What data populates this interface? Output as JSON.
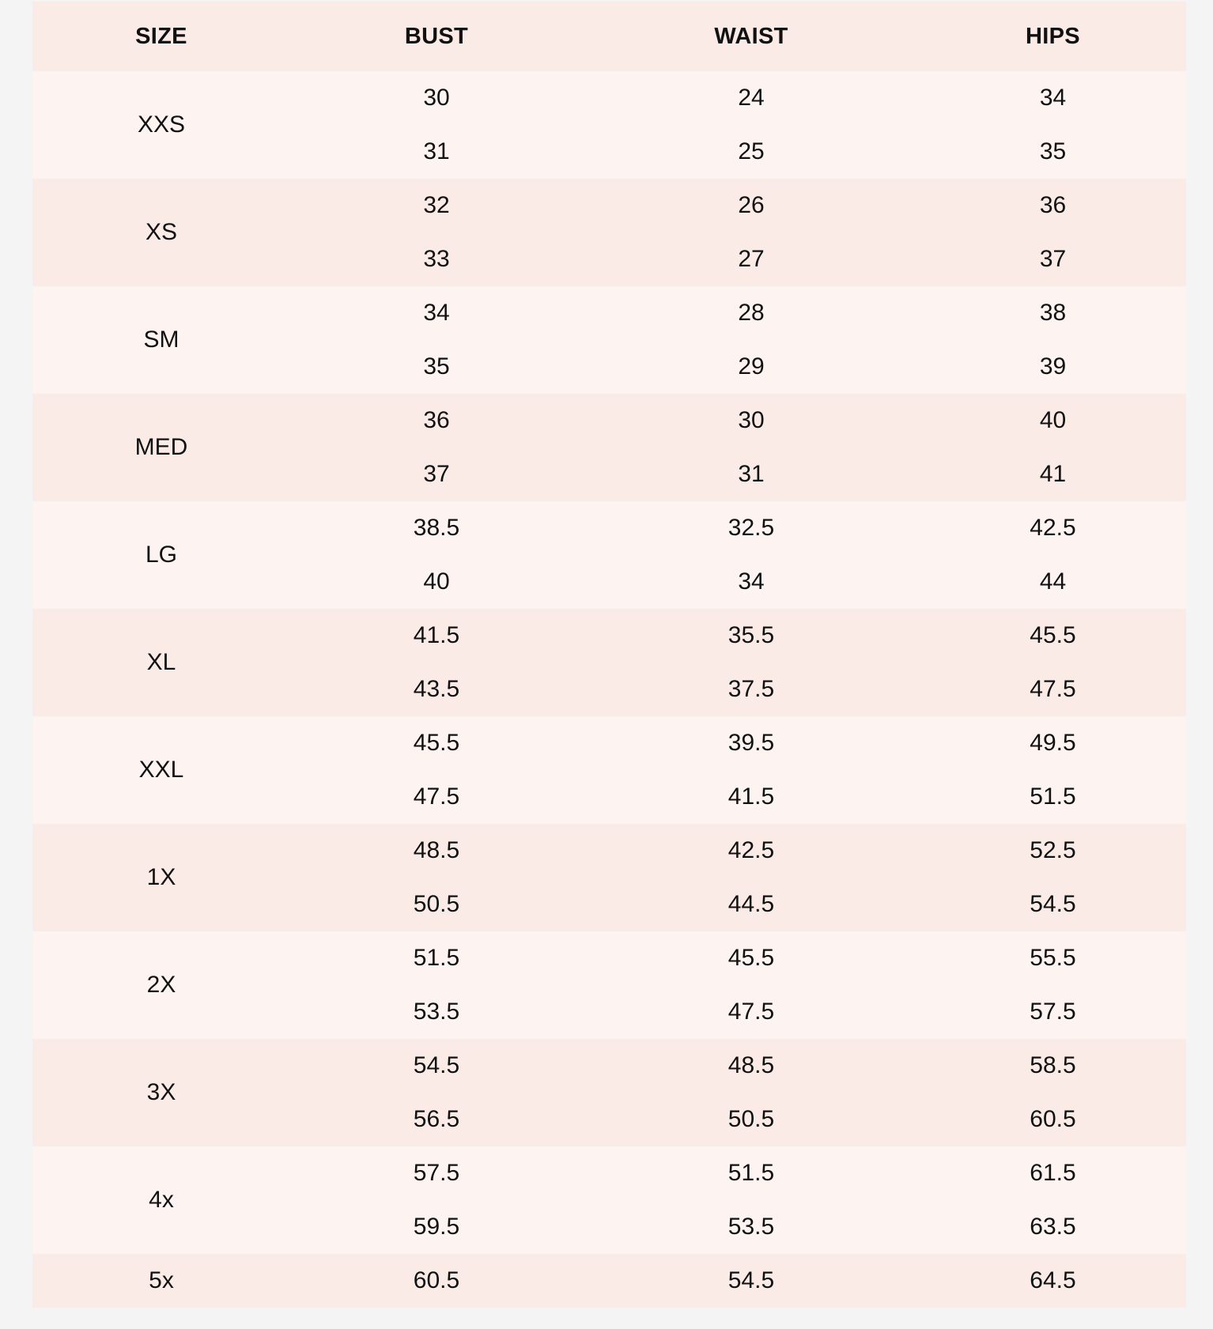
{
  "colors": {
    "background": "#f4f4f4",
    "header_bg": "#fbebe6",
    "row_light": "#fdf4f1",
    "row_dark": "#fbebe6"
  },
  "table": {
    "headers": [
      "SIZE",
      "BUST",
      "WAIST",
      "HIPS"
    ],
    "rows": [
      {
        "size": "XXS",
        "bust": [
          "30",
          "31"
        ],
        "waist": [
          "24",
          "25"
        ],
        "hips": [
          "34",
          "35"
        ]
      },
      {
        "size": "XS",
        "bust": [
          "32",
          "33"
        ],
        "waist": [
          "26",
          "27"
        ],
        "hips": [
          "36",
          "37"
        ]
      },
      {
        "size": "SM",
        "bust": [
          "34",
          "35"
        ],
        "waist": [
          "28",
          "29"
        ],
        "hips": [
          "38",
          "39"
        ]
      },
      {
        "size": "MED",
        "bust": [
          "36",
          "37"
        ],
        "waist": [
          "30",
          "31"
        ],
        "hips": [
          "40",
          "41"
        ]
      },
      {
        "size": "LG",
        "bust": [
          "38.5",
          "40"
        ],
        "waist": [
          "32.5",
          "34"
        ],
        "hips": [
          "42.5",
          "44"
        ]
      },
      {
        "size": "XL",
        "bust": [
          "41.5",
          "43.5"
        ],
        "waist": [
          "35.5",
          "37.5"
        ],
        "hips": [
          "45.5",
          "47.5"
        ]
      },
      {
        "size": "XXL",
        "bust": [
          "45.5",
          "47.5"
        ],
        "waist": [
          "39.5",
          "41.5"
        ],
        "hips": [
          "49.5",
          "51.5"
        ]
      },
      {
        "size": "1X",
        "bust": [
          "48.5",
          "50.5"
        ],
        "waist": [
          "42.5",
          "44.5"
        ],
        "hips": [
          "52.5",
          "54.5"
        ]
      },
      {
        "size": "2X",
        "bust": [
          "51.5",
          "53.5"
        ],
        "waist": [
          "45.5",
          "47.5"
        ],
        "hips": [
          "55.5",
          "57.5"
        ]
      },
      {
        "size": "3X",
        "bust": [
          "54.5",
          "56.5"
        ],
        "waist": [
          "48.5",
          "50.5"
        ],
        "hips": [
          "58.5",
          "60.5"
        ]
      },
      {
        "size": "4x",
        "bust": [
          "57.5",
          "59.5"
        ],
        "waist": [
          "51.5",
          "53.5"
        ],
        "hips": [
          "61.5",
          "63.5"
        ]
      },
      {
        "size": "5x",
        "bust": [
          "60.5"
        ],
        "waist": [
          "54.5"
        ],
        "hips": [
          "64.5"
        ]
      }
    ]
  }
}
